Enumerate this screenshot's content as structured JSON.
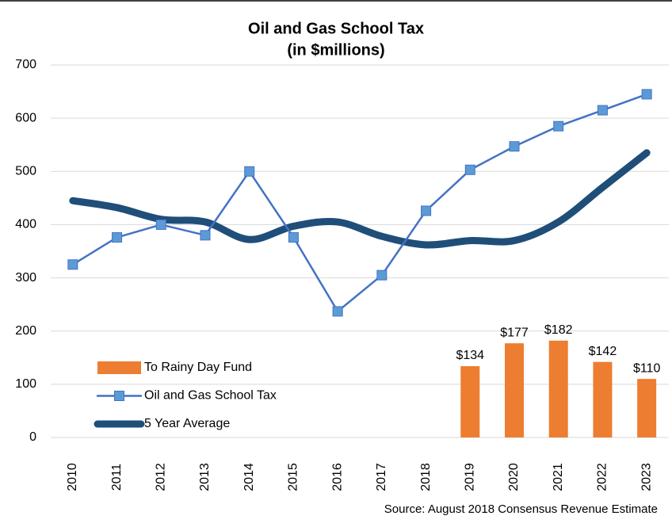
{
  "chart_data": {
    "type": "combo",
    "title": "Oil and Gas School Tax",
    "subtitle": "(in $millions)",
    "source": "Source: August 2018 Consensus Revenue Estimate",
    "categories": [
      "2010",
      "2011",
      "2012",
      "2013",
      "2014",
      "2015",
      "2016",
      "2017",
      "2018",
      "2019",
      "2020",
      "2021",
      "2022",
      "2023"
    ],
    "series": [
      {
        "name": "To Rainy Day Fund",
        "type": "bar",
        "color": "#ed7d31",
        "values": [
          null,
          null,
          null,
          null,
          null,
          null,
          null,
          null,
          null,
          134,
          177,
          182,
          142,
          110
        ],
        "value_labels": [
          null,
          null,
          null,
          null,
          null,
          null,
          null,
          null,
          null,
          "$134",
          "$177",
          "$182",
          "$142",
          "$110"
        ]
      },
      {
        "name": "Oil and Gas School Tax",
        "type": "line",
        "color": "#4472c4",
        "marker": "square",
        "marker_color": "#5b9bd5",
        "values": [
          325,
          376,
          400,
          380,
          500,
          376,
          237,
          305,
          426,
          503,
          547,
          585,
          615,
          645
        ]
      },
      {
        "name": "5 Year Average",
        "type": "line",
        "color": "#1f4e79",
        "smooth": true,
        "values": [
          445,
          432,
          410,
          405,
          372,
          397,
          405,
          378,
          362,
          370,
          370,
          405,
          470,
          535
        ]
      }
    ],
    "ylim": [
      0,
      700
    ],
    "yticks": [
      0,
      100,
      200,
      300,
      400,
      500,
      600,
      700
    ],
    "grid": true,
    "legend": "lower left"
  }
}
